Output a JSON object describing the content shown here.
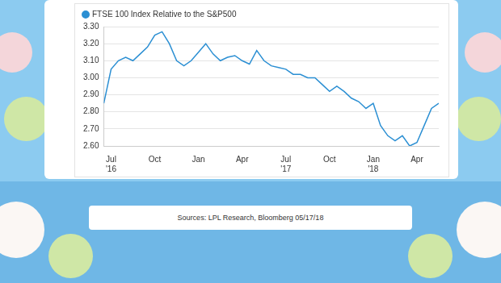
{
  "chart_data": {
    "type": "line",
    "categories": [
      null,
      "Jul\n'16",
      null,
      null,
      null,
      null,
      null,
      "Oct",
      null,
      null,
      null,
      null,
      null,
      "Jan",
      null,
      null,
      null,
      null,
      null,
      "Apr",
      null,
      null,
      null,
      null,
      null,
      "Jul\n'17",
      null,
      null,
      null,
      null,
      null,
      "Oct",
      null,
      null,
      null,
      null,
      null,
      "Jan\n'18",
      null,
      null,
      null,
      null,
      null,
      "Apr",
      null,
      null,
      null
    ],
    "series": [
      {
        "name": "FTSE 100 Index Relative to the S&P500",
        "color": "#2b8fd3",
        "values": [
          2.85,
          3.05,
          3.1,
          3.12,
          3.1,
          3.14,
          3.18,
          3.25,
          3.27,
          3.2,
          3.1,
          3.07,
          3.1,
          3.15,
          3.2,
          3.14,
          3.1,
          3.12,
          3.13,
          3.1,
          3.08,
          3.16,
          3.1,
          3.07,
          3.06,
          3.05,
          3.02,
          3.02,
          3.0,
          3.0,
          2.96,
          2.92,
          2.95,
          2.92,
          2.88,
          2.86,
          2.82,
          2.85,
          2.72,
          2.66,
          2.63,
          2.66,
          2.6,
          2.62,
          2.72,
          2.82,
          2.85
        ]
      }
    ],
    "ylim": [
      2.6,
      3.3
    ],
    "yticks": [
      {
        "value": 2.6,
        "label": "2.60"
      },
      {
        "value": 2.7,
        "label": "2.70"
      },
      {
        "value": 2.8,
        "label": "2.80"
      },
      {
        "value": 2.9,
        "label": "2.90"
      },
      {
        "value": 3.0,
        "label": "3.00"
      },
      {
        "value": 3.1,
        "label": "3.10"
      },
      {
        "value": 3.2,
        "label": "3.20"
      },
      {
        "value": 3.3,
        "label": "3.30"
      }
    ],
    "grid": true,
    "legend": "top-left",
    "source": "Sources: LPL Research, Bloomberg 05/17/18"
  }
}
